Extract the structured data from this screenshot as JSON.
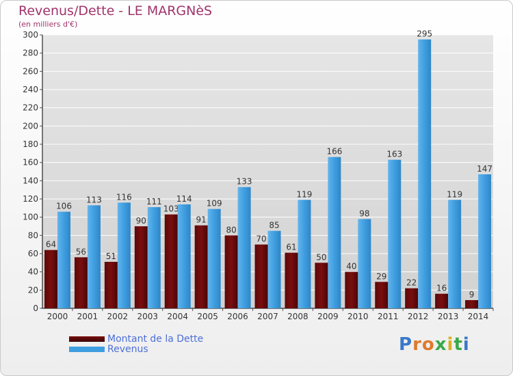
{
  "title": "Revenus/Dette - LE MARGNèS",
  "subtitle": "(en milliers d'€)",
  "logo_text": "Proxiti",
  "colors": {
    "dette": "#7a0e0e",
    "revenus": "#3f9ee0",
    "axis": "#000000",
    "grid": "#ffffff"
  },
  "chart_data": {
    "type": "bar",
    "title": "Revenus/Dette - LE MARGNèS",
    "subtitle": "(en milliers d'€)",
    "xlabel": "",
    "ylabel": "",
    "ylim": [
      0,
      300
    ],
    "yticks": [
      0,
      20,
      40,
      60,
      80,
      100,
      120,
      140,
      160,
      180,
      200,
      220,
      240,
      260,
      280,
      300
    ],
    "grid": true,
    "legend": "bottom-left",
    "categories": [
      "2000",
      "2001",
      "2002",
      "2003",
      "2004",
      "2005",
      "2006",
      "2007",
      "2008",
      "2009",
      "2010",
      "2011",
      "2012",
      "2013",
      "2014"
    ],
    "series": [
      {
        "name": "Montant de la Dette",
        "values": [
          64,
          56,
          51,
          90,
          103,
          91,
          80,
          70,
          61,
          50,
          40,
          29,
          22,
          16,
          9
        ]
      },
      {
        "name": "Revenus",
        "values": [
          106,
          113,
          116,
          111,
          114,
          109,
          133,
          85,
          119,
          166,
          98,
          163,
          295,
          119,
          147
        ]
      }
    ]
  }
}
